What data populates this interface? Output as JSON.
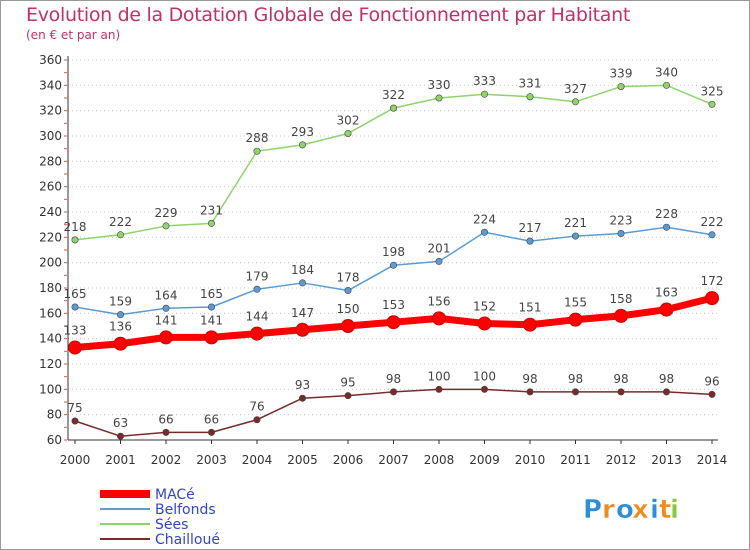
{
  "chart_data": {
    "type": "line",
    "title": "Evolution de la Dotation Globale de Fonctionnement par Habitant",
    "subtitle": "(en € et par an)",
    "xlabel": "",
    "ylabel": "",
    "x": [
      "2000",
      "2001",
      "2002",
      "2003",
      "2004",
      "2005",
      "2006",
      "2007",
      "2008",
      "2009",
      "2010",
      "2011",
      "2012",
      "2013",
      "2014"
    ],
    "ylim": [
      60,
      360
    ],
    "yticks": [
      "60",
      "80",
      "100",
      "120",
      "140",
      "160",
      "180",
      "200",
      "220",
      "240",
      "260",
      "280",
      "300",
      "320",
      "340",
      "360"
    ],
    "grid": "horizontal dotted",
    "legend_position": "bottom-left",
    "series": [
      {
        "name": "MACé",
        "color": "#ff0000",
        "emphasis": true,
        "values": [
          133,
          136,
          141,
          141,
          144,
          147,
          150,
          153,
          156,
          152,
          151,
          155,
          158,
          163,
          172
        ],
        "labels": [
          "133",
          "136",
          "141",
          "141",
          "144",
          "147",
          "150",
          "153",
          "156",
          "152",
          "151",
          "155",
          "158",
          "163",
          "172"
        ]
      },
      {
        "name": "Belfonds",
        "color": "#5b9bd5",
        "emphasis": false,
        "values": [
          165,
          159,
          164,
          165,
          179,
          184,
          178,
          198,
          201,
          224,
          217,
          221,
          223,
          228,
          222
        ],
        "labels": [
          "165",
          "159",
          "164",
          "165",
          "179",
          "184",
          "178",
          "198",
          "201",
          "224",
          "217",
          "221",
          "223",
          "228",
          "222"
        ]
      },
      {
        "name": "Sées",
        "color": "#8fd36b",
        "emphasis": false,
        "values": [
          218,
          222,
          229,
          231,
          288,
          293,
          302,
          322,
          330,
          333,
          331,
          327,
          339,
          340,
          325
        ],
        "labels": [
          "218",
          "222",
          "229",
          "231",
          "288",
          "293",
          "302",
          "322",
          "330",
          "333",
          "331",
          "327",
          "339",
          "340",
          "325"
        ]
      },
      {
        "name": "Chailloué",
        "color": "#7a2a2a",
        "emphasis": false,
        "values": [
          75,
          63,
          66,
          66,
          76,
          93,
          95,
          98,
          100,
          100,
          98,
          98,
          98,
          98,
          96
        ],
        "labels": [
          "75",
          "63",
          "66",
          "66",
          "76",
          "93",
          "95",
          "98",
          "100",
          "100",
          "98",
          "98",
          "98",
          "98",
          "96"
        ]
      }
    ]
  },
  "logo": {
    "text": "Proxiti",
    "letter_colors": [
      "#2a8fd8",
      "#f08c1e",
      "#2a8fd8",
      "#f08c1e",
      "#2a8fd8",
      "#f08c1e",
      "#8cc63f"
    ]
  }
}
